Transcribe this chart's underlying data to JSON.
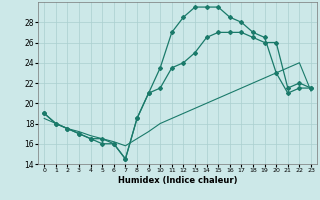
{
  "xlabel": "Humidex (Indice chaleur)",
  "ylabel": "",
  "bg_color": "#cce8e8",
  "grid_color": "#aacfcf",
  "line_color": "#1a7a6a",
  "x_data": [
    0,
    1,
    2,
    3,
    4,
    5,
    6,
    7,
    8,
    9,
    10,
    11,
    12,
    13,
    14,
    15,
    16,
    17,
    18,
    19,
    20,
    21,
    22,
    23
  ],
  "line1": [
    19,
    18,
    17.5,
    17,
    16.5,
    16.5,
    16,
    14.5,
    18.5,
    21,
    23.5,
    27,
    28.5,
    29.5,
    29.5,
    29.5,
    28.5,
    28,
    27,
    26.5,
    23,
    21,
    21.5,
    21.5
  ],
  "line2": [
    19,
    18,
    17.5,
    17,
    16.5,
    16,
    16,
    14.5,
    18.5,
    21,
    21.5,
    23.5,
    24,
    25,
    26.5,
    27,
    27,
    27,
    26.5,
    26,
    26,
    21.5,
    22,
    21.5
  ],
  "line3": [
    18.5,
    18,
    17.5,
    17.2,
    16.8,
    16.5,
    16.2,
    15.8,
    16.5,
    17.2,
    18,
    18.5,
    19,
    19.5,
    20,
    20.5,
    21,
    21.5,
    22,
    22.5,
    23,
    23.5,
    24,
    21.2
  ],
  "xlim": [
    -0.5,
    23.5
  ],
  "ylim": [
    14,
    30
  ],
  "yticks": [
    14,
    16,
    18,
    20,
    22,
    24,
    26,
    28
  ],
  "xticks": [
    0,
    1,
    2,
    3,
    4,
    5,
    6,
    7,
    8,
    9,
    10,
    11,
    12,
    13,
    14,
    15,
    16,
    17,
    18,
    19,
    20,
    21,
    22,
    23
  ]
}
